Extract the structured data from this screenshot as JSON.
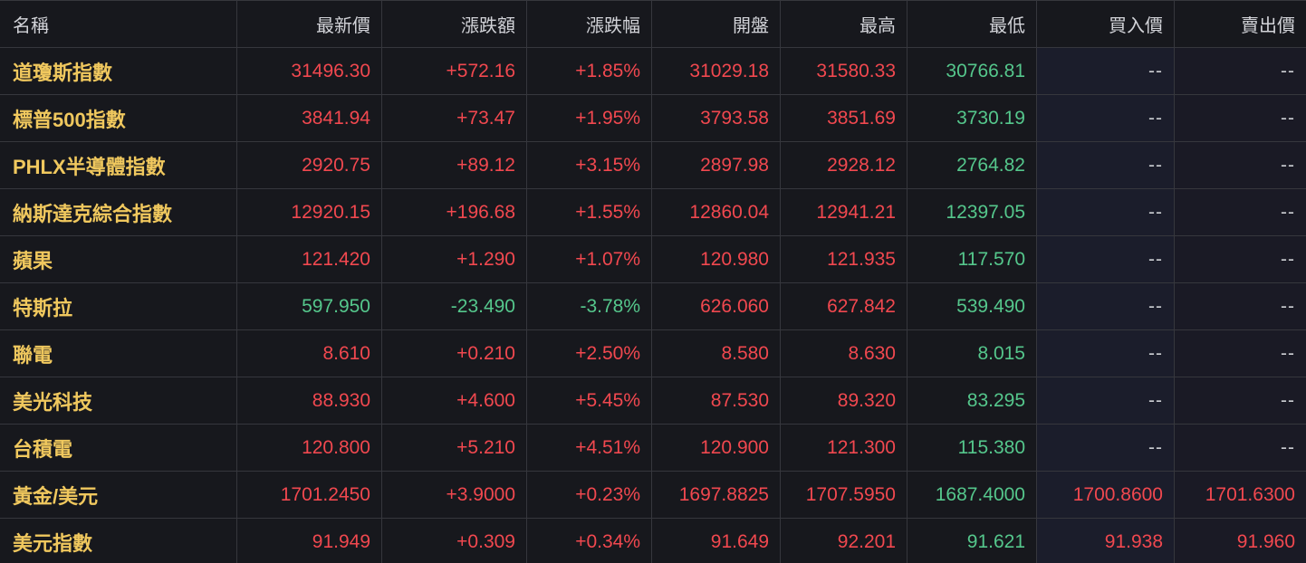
{
  "colors": {
    "background": "#17181d",
    "grid-line": "#36373d",
    "up": "#f1484f",
    "down": "#55c78c",
    "name": "#f0c85e",
    "header-text": "#d2d3d8",
    "dash": "#c9cbd0",
    "bid-bg": "#1b1d2b",
    "ask-bg": "#1a1a25"
  },
  "table": {
    "columns": [
      {
        "key": "name",
        "label": "名稱"
      },
      {
        "key": "last",
        "label": "最新價"
      },
      {
        "key": "change",
        "label": "漲跌額"
      },
      {
        "key": "change_pct",
        "label": "漲跌幅"
      },
      {
        "key": "open",
        "label": "開盤"
      },
      {
        "key": "high",
        "label": "最高"
      },
      {
        "key": "low",
        "label": "最低"
      },
      {
        "key": "bid",
        "label": "買入價"
      },
      {
        "key": "ask",
        "label": "賣出價"
      }
    ],
    "rows": [
      {
        "cells": [
          {
            "t": "道瓊斯指數",
            "c": "name"
          },
          {
            "t": "31496.30",
            "c": "up"
          },
          {
            "t": "+572.16",
            "c": "up"
          },
          {
            "t": "+1.85%",
            "c": "up"
          },
          {
            "t": "31029.18",
            "c": "up"
          },
          {
            "t": "31580.33",
            "c": "up"
          },
          {
            "t": "30766.81",
            "c": "down"
          },
          {
            "t": "--",
            "c": "dash"
          },
          {
            "t": "--",
            "c": "dash"
          }
        ]
      },
      {
        "cells": [
          {
            "t": "標普500指數",
            "c": "name"
          },
          {
            "t": "3841.94",
            "c": "up"
          },
          {
            "t": "+73.47",
            "c": "up"
          },
          {
            "t": "+1.95%",
            "c": "up"
          },
          {
            "t": "3793.58",
            "c": "up"
          },
          {
            "t": "3851.69",
            "c": "up"
          },
          {
            "t": "3730.19",
            "c": "down"
          },
          {
            "t": "--",
            "c": "dash"
          },
          {
            "t": "--",
            "c": "dash"
          }
        ]
      },
      {
        "cells": [
          {
            "t": "PHLX半導體指數",
            "c": "name"
          },
          {
            "t": "2920.75",
            "c": "up"
          },
          {
            "t": "+89.12",
            "c": "up"
          },
          {
            "t": "+3.15%",
            "c": "up"
          },
          {
            "t": "2897.98",
            "c": "up"
          },
          {
            "t": "2928.12",
            "c": "up"
          },
          {
            "t": "2764.82",
            "c": "down"
          },
          {
            "t": "--",
            "c": "dash"
          },
          {
            "t": "--",
            "c": "dash"
          }
        ]
      },
      {
        "cells": [
          {
            "t": "納斯達克綜合指數",
            "c": "name"
          },
          {
            "t": "12920.15",
            "c": "up"
          },
          {
            "t": "+196.68",
            "c": "up"
          },
          {
            "t": "+1.55%",
            "c": "up"
          },
          {
            "t": "12860.04",
            "c": "up"
          },
          {
            "t": "12941.21",
            "c": "up"
          },
          {
            "t": "12397.05",
            "c": "down"
          },
          {
            "t": "--",
            "c": "dash"
          },
          {
            "t": "--",
            "c": "dash"
          }
        ]
      },
      {
        "cells": [
          {
            "t": "蘋果",
            "c": "name"
          },
          {
            "t": "121.420",
            "c": "up"
          },
          {
            "t": "+1.290",
            "c": "up"
          },
          {
            "t": "+1.07%",
            "c": "up"
          },
          {
            "t": "120.980",
            "c": "up"
          },
          {
            "t": "121.935",
            "c": "up"
          },
          {
            "t": "117.570",
            "c": "down"
          },
          {
            "t": "--",
            "c": "dash"
          },
          {
            "t": "--",
            "c": "dash"
          }
        ]
      },
      {
        "cells": [
          {
            "t": "特斯拉",
            "c": "name"
          },
          {
            "t": "597.950",
            "c": "down"
          },
          {
            "t": "-23.490",
            "c": "down"
          },
          {
            "t": "-3.78%",
            "c": "down"
          },
          {
            "t": "626.060",
            "c": "up"
          },
          {
            "t": "627.842",
            "c": "up"
          },
          {
            "t": "539.490",
            "c": "down"
          },
          {
            "t": "--",
            "c": "dash"
          },
          {
            "t": "--",
            "c": "dash"
          }
        ]
      },
      {
        "cells": [
          {
            "t": "聯電",
            "c": "name"
          },
          {
            "t": "8.610",
            "c": "up"
          },
          {
            "t": "+0.210",
            "c": "up"
          },
          {
            "t": "+2.50%",
            "c": "up"
          },
          {
            "t": "8.580",
            "c": "up"
          },
          {
            "t": "8.630",
            "c": "up"
          },
          {
            "t": "8.015",
            "c": "down"
          },
          {
            "t": "--",
            "c": "dash"
          },
          {
            "t": "--",
            "c": "dash"
          }
        ]
      },
      {
        "cells": [
          {
            "t": "美光科技",
            "c": "name"
          },
          {
            "t": "88.930",
            "c": "up"
          },
          {
            "t": "+4.600",
            "c": "up"
          },
          {
            "t": "+5.45%",
            "c": "up"
          },
          {
            "t": "87.530",
            "c": "up"
          },
          {
            "t": "89.320",
            "c": "up"
          },
          {
            "t": "83.295",
            "c": "down"
          },
          {
            "t": "--",
            "c": "dash"
          },
          {
            "t": "--",
            "c": "dash"
          }
        ]
      },
      {
        "cells": [
          {
            "t": "台積電",
            "c": "name"
          },
          {
            "t": "120.800",
            "c": "up"
          },
          {
            "t": "+5.210",
            "c": "up"
          },
          {
            "t": "+4.51%",
            "c": "up"
          },
          {
            "t": "120.900",
            "c": "up"
          },
          {
            "t": "121.300",
            "c": "up"
          },
          {
            "t": "115.380",
            "c": "down"
          },
          {
            "t": "--",
            "c": "dash"
          },
          {
            "t": "--",
            "c": "dash"
          }
        ]
      },
      {
        "cells": [
          {
            "t": "黃金/美元",
            "c": "name"
          },
          {
            "t": "1701.2450",
            "c": "up"
          },
          {
            "t": "+3.9000",
            "c": "up"
          },
          {
            "t": "+0.23%",
            "c": "up"
          },
          {
            "t": "1697.8825",
            "c": "up"
          },
          {
            "t": "1707.5950",
            "c": "up"
          },
          {
            "t": "1687.4000",
            "c": "down"
          },
          {
            "t": "1700.8600",
            "c": "up"
          },
          {
            "t": "1701.6300",
            "c": "up"
          }
        ]
      },
      {
        "cells": [
          {
            "t": "美元指數",
            "c": "name"
          },
          {
            "t": "91.949",
            "c": "up"
          },
          {
            "t": "+0.309",
            "c": "up"
          },
          {
            "t": "+0.34%",
            "c": "up"
          },
          {
            "t": "91.649",
            "c": "up"
          },
          {
            "t": "92.201",
            "c": "up"
          },
          {
            "t": "91.621",
            "c": "down"
          },
          {
            "t": "91.938",
            "c": "up"
          },
          {
            "t": "91.960",
            "c": "up"
          }
        ]
      }
    ]
  }
}
